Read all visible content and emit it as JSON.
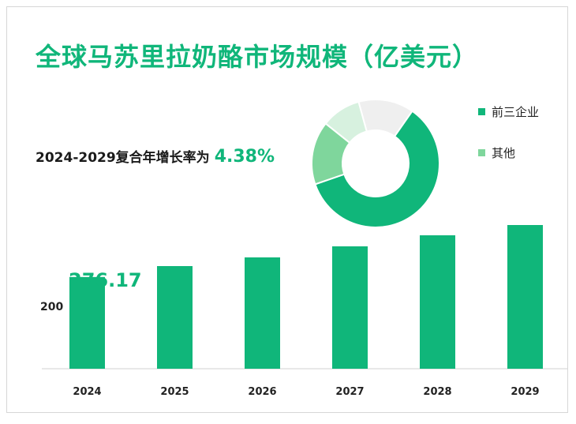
{
  "title": "全球马苏里拉奶酪市场规模（亿美元）",
  "cagr": {
    "label": "2024-2029复合年增长率为",
    "value": "4.38%"
  },
  "colors": {
    "accent": "#10b67a",
    "mid": "#7fd69c",
    "light": "#d7f1df",
    "grey": "#efefef"
  },
  "chart_data": [
    {
      "type": "pie",
      "series": [
        {
          "name": "前三企业",
          "value": 60,
          "color": "#10b67a"
        },
        {
          "name": "其他",
          "value": 40,
          "segments": [
            16,
            10,
            14
          ],
          "colors": [
            "#7fd69c",
            "#d7f1df",
            "#efefef"
          ]
        }
      ],
      "legend": {
        "position": "right",
        "items": [
          "前三企业",
          "其他"
        ]
      }
    },
    {
      "type": "bar",
      "categories": [
        "2024",
        "2025",
        "2026",
        "2027",
        "2028",
        "2029"
      ],
      "values": [
        276.17,
        290,
        301,
        315,
        329,
        342
      ],
      "ytick": "200",
      "first_label": "276.17",
      "ylim": [
        160,
        360
      ]
    }
  ]
}
